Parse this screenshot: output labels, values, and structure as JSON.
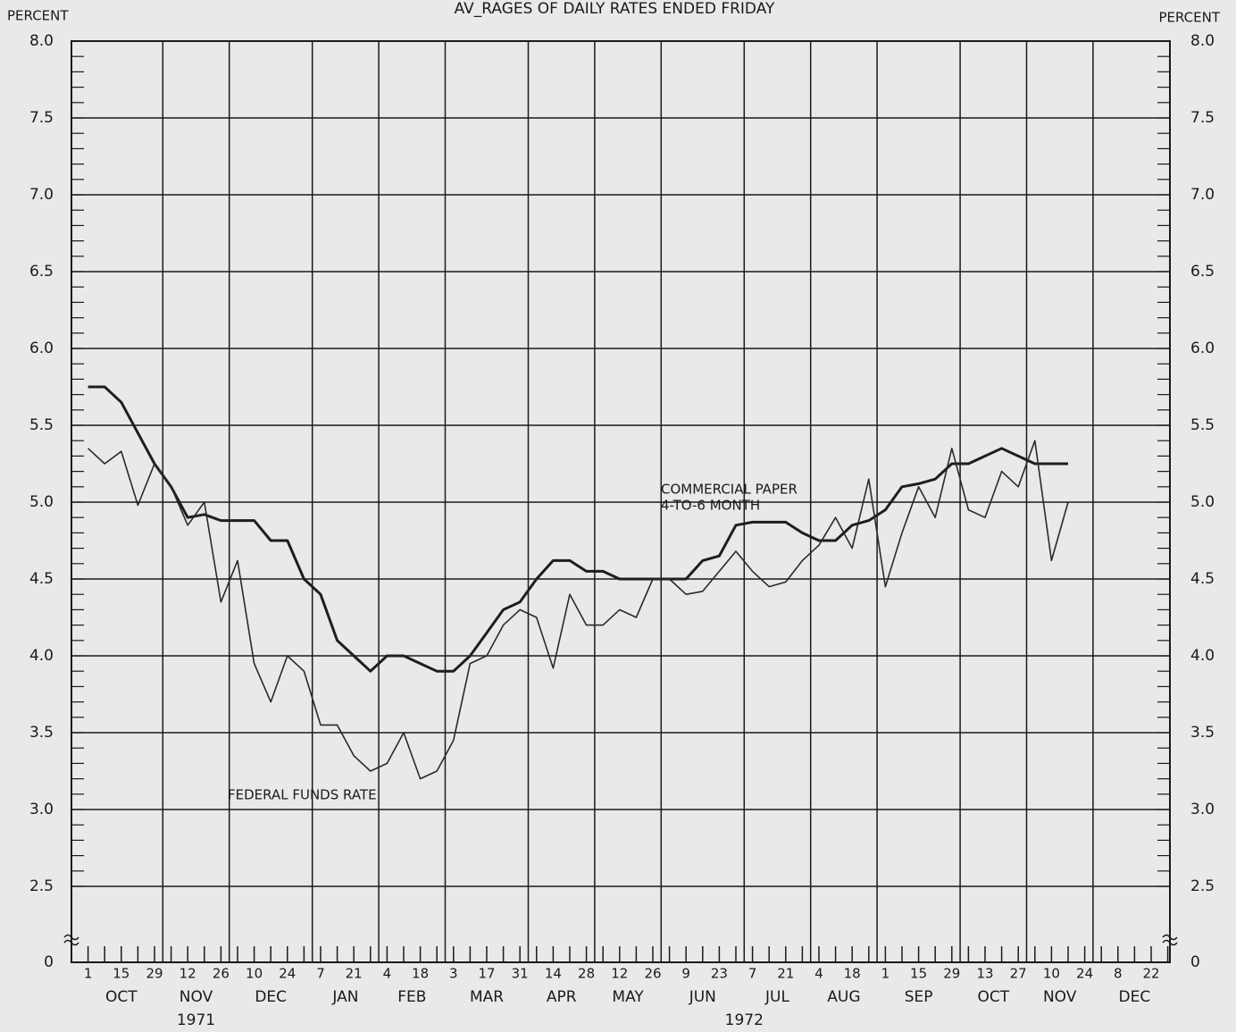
{
  "chart_data": {
    "type": "line",
    "title": "AV_RAGES OF DAILY RATES ENDED FRIDAY",
    "y_label": "PERCENT",
    "y2_label": "PERCENT",
    "ylim": [
      0,
      8
    ],
    "y_break": [
      0,
      2.5
    ],
    "y_minor_step": 0.1,
    "yticks": [
      0,
      2.5,
      {
        "value": 3,
        "label": "3.0"
      },
      3.5,
      {
        "value": 4,
        "label": "4.0"
      },
      4.5,
      {
        "value": 5,
        "label": "5.0"
      },
      5.5,
      {
        "value": 6,
        "label": "6.0"
      },
      6.5,
      {
        "value": 7,
        "label": "7.0"
      },
      7.5,
      {
        "value": 8,
        "label": "8.0"
      }
    ],
    "grid": true,
    "x_axis": {
      "years": [
        {
          "label": "1971",
          "months": [
            {
              "label": "OCT",
              "days": [
                "1",
                null,
                "15",
                null,
                "29"
              ]
            },
            {
              "label": "NOV",
              "days": [
                null,
                "12",
                null,
                "26"
              ]
            },
            {
              "label": "DEC",
              "days": [
                null,
                "10",
                null,
                "24",
                null
              ]
            }
          ]
        },
        {
          "label": "1972",
          "months": [
            {
              "label": "JAN",
              "days": [
                "7",
                null,
                "21",
                null
              ]
            },
            {
              "label": "FEB",
              "days": [
                "4",
                null,
                "18",
                null
              ]
            },
            {
              "label": "MAR",
              "days": [
                "3",
                null,
                "17",
                null,
                "31"
              ]
            },
            {
              "label": "APR",
              "days": [
                null,
                "14",
                null,
                "28"
              ]
            },
            {
              "label": "MAY",
              "days": [
                null,
                "12",
                null,
                "26"
              ]
            },
            {
              "label": "JUN",
              "days": [
                null,
                "9",
                null,
                "23",
                null
              ]
            },
            {
              "label": "JUL",
              "days": [
                "7",
                null,
                "21",
                null
              ]
            },
            {
              "label": "AUG",
              "days": [
                "4",
                null,
                "18",
                null
              ]
            },
            {
              "label": "SEP",
              "days": [
                "1",
                null,
                "15",
                null,
                "29"
              ]
            },
            {
              "label": "OCT",
              "days": [
                null,
                "13",
                null,
                "27"
              ]
            },
            {
              "label": "NOV",
              "days": [
                null,
                "10",
                null,
                "24"
              ]
            },
            {
              "label": "DEC",
              "days": [
                null,
                "8",
                null,
                "22",
                null
              ]
            }
          ]
        }
      ]
    },
    "series": [
      {
        "label_lines": [
          "COMMERCIAL PAPER",
          "4-TO-6 MONTH"
        ],
        "color": "#1e1e1e",
        "line_width": 3,
        "values": [
          5.75,
          5.75,
          5.65,
          5.45,
          5.25,
          5.1,
          4.9,
          4.92,
          4.88,
          4.88,
          4.88,
          4.75,
          4.75,
          4.5,
          4.4,
          4.1,
          4.0,
          3.9,
          4.0,
          4.0,
          3.95,
          3.9,
          3.9,
          4.0,
          4.15,
          4.3,
          4.35,
          4.5,
          4.62,
          4.62,
          4.55,
          4.55,
          4.5,
          4.5,
          4.5,
          4.5,
          4.5,
          4.62,
          4.65,
          4.85,
          4.87,
          4.87,
          4.87,
          4.8,
          4.75,
          4.75,
          4.85,
          4.88,
          4.95,
          5.1,
          5.12,
          5.15,
          5.25,
          5.25,
          5.3,
          5.35,
          5.3,
          5.25,
          5.25,
          5.25,
          null,
          null,
          null,
          null,
          null,
          null
        ]
      },
      {
        "label_lines": [
          "FEDERAL FUNDS RATE"
        ],
        "color": "#2a2a2a",
        "line_width": 1.6,
        "values": [
          5.35,
          5.25,
          5.33,
          4.98,
          5.25,
          5.1,
          4.85,
          5.0,
          4.35,
          4.62,
          3.95,
          3.7,
          4.0,
          3.9,
          3.55,
          3.55,
          3.35,
          3.25,
          3.3,
          3.5,
          3.2,
          3.25,
          3.45,
          3.95,
          4.0,
          4.2,
          4.3,
          4.25,
          3.92,
          4.4,
          4.2,
          4.2,
          4.3,
          4.25,
          4.5,
          4.5,
          4.4,
          4.42,
          4.55,
          4.68,
          4.55,
          4.45,
          4.48,
          4.62,
          4.72,
          4.9,
          4.7,
          5.15,
          4.45,
          4.8,
          5.1,
          4.9,
          5.35,
          4.95,
          4.9,
          5.2,
          5.1,
          5.4,
          4.62,
          5.0,
          null,
          null,
          null,
          null,
          null,
          null
        ]
      }
    ]
  }
}
